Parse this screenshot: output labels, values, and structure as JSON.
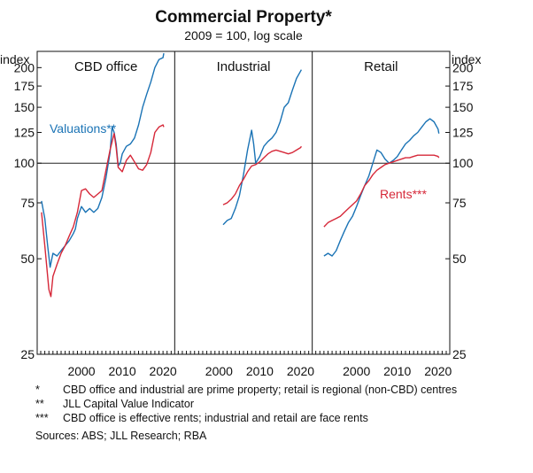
{
  "title": "Commercial Property*",
  "subtitle": "2009 = 100, log scale",
  "colors": {
    "valuations": "#1a73b5",
    "rents": "#d62839",
    "axis": "#111111",
    "grid": "#222222"
  },
  "chart_data": {
    "type": "line",
    "scale": "log",
    "title": "Commercial Property*",
    "subtitle": "2009 = 100, log scale",
    "y_unit_left": "index",
    "y_unit_right": "index",
    "ylim": [
      25,
      225
    ],
    "yticks": [
      25,
      50,
      75,
      100,
      125,
      150,
      175,
      200
    ],
    "xlim": [
      1990,
      2022
    ],
    "xticks": [
      2000,
      2010,
      2020
    ],
    "x_tick_labels": [
      "2000",
      "2010",
      "2020"
    ],
    "series_labels": {
      "valuations": "Valuations**",
      "rents": "Rents***"
    },
    "panels": [
      {
        "name": "CBD office",
        "series": [
          {
            "name": "Valuations**",
            "x": [
              1990.2,
              1991,
              1991.7,
              1992.3,
              1993,
              1994,
              1995,
              1996,
              1997,
              1998,
              1998.5,
              1999,
              1999.5,
              2000,
              2001,
              2002,
              2003,
              2004,
              2005,
              2006,
              2007,
              2007.5,
              2008,
              2008.5,
              2009,
              2009.5,
              2010,
              2011,
              2012,
              2013,
              2014,
              2015,
              2016,
              2017,
              2018,
              2019,
              2020,
              2020.2
            ],
            "y": [
              76,
              67,
              55,
              47,
              52,
              51,
              53,
              55,
              57,
              60,
              62,
              67,
              70,
              73,
              70,
              72,
              70,
              72,
              78,
              90,
              108,
              130,
              125,
              115,
              98,
              100,
              107,
              113,
              115,
              120,
              132,
              150,
              165,
              180,
              200,
              212,
              215,
              222
            ]
          },
          {
            "name": "Rents***",
            "x": [
              1990.2,
              1991,
              1992,
              1992.5,
              1993,
              1994,
              1995,
              1996,
              1997,
              1998,
              1999,
              2000,
              2001,
              2002,
              2003,
              2004,
              2005,
              2006,
              2007,
              2008,
              2008.5,
              2009,
              2010,
              2011,
              2012,
              2013,
              2014,
              2015,
              2016,
              2017,
              2018,
              2019,
              2020,
              2020.2
            ],
            "y": [
              70,
              55,
              40,
              38,
              44,
              48,
              52,
              55,
              59,
              63,
              70,
              82,
              83,
              80,
              78,
              80,
              82,
              95,
              110,
              124,
              112,
              97,
              94,
              102,
              106,
              101,
              96,
              95,
              99,
              108,
              125,
              130,
              132,
              130
            ]
          }
        ]
      },
      {
        "name": "Industrial",
        "series": [
          {
            "name": "Valuations**",
            "x": [
              2001,
              2002,
              2003,
              2004,
              2005,
              2006,
              2007,
              2008,
              2008.5,
              2009,
              2010,
              2011,
              2012,
              2013,
              2014,
              2015,
              2016,
              2017,
              2018,
              2019,
              2020,
              2020.2
            ],
            "y": [
              64,
              66,
              67,
              72,
              79,
              92,
              110,
              127,
              115,
              100,
              105,
              113,
              117,
              120,
              125,
              135,
              150,
              155,
              170,
              185,
              195,
              197
            ]
          },
          {
            "name": "Rents***",
            "x": [
              2001,
              2002,
              2003,
              2004,
              2005,
              2006,
              2007,
              2008,
              2009,
              2010,
              2011,
              2012,
              2013,
              2014,
              2015,
              2016,
              2017,
              2018,
              2019,
              2020,
              2020.2
            ],
            "y": [
              74,
              75,
              77,
              80,
              85,
              89,
              94,
              98,
              99,
              101,
              104,
              107,
              109,
              110,
              109,
              108,
              107,
              108,
              110,
              112,
              113
            ]
          }
        ]
      },
      {
        "name": "Retail",
        "series": [
          {
            "name": "Valuations**",
            "x": [
              1992,
              1993,
              1994,
              1995,
              1996,
              1997,
              1998,
              1999,
              2000,
              2001,
              2002,
              2003,
              2004,
              2005,
              2006,
              2007,
              2008,
              2009,
              2010,
              2011,
              2012,
              2013,
              2014,
              2015,
              2016,
              2017,
              2018,
              2019,
              2020,
              2020.2
            ],
            "y": [
              51,
              52,
              51,
              53,
              57,
              61,
              65,
              68,
              73,
              79,
              85,
              91,
              100,
              110,
              108,
              103,
              100,
              102,
              105,
              110,
              115,
              118,
              122,
              125,
              130,
              135,
              138,
              135,
              128,
              124
            ]
          },
          {
            "name": "Rents***",
            "x": [
              1992,
              1993,
              1994,
              1995,
              1996,
              1997,
              1998,
              1999,
              2000,
              2001,
              2002,
              2003,
              2004,
              2005,
              2006,
              2007,
              2008,
              2009,
              2010,
              2011,
              2012,
              2013,
              2014,
              2015,
              2016,
              2017,
              2018,
              2019,
              2020,
              2020.2
            ],
            "y": [
              63,
              65,
              66,
              67,
              68,
              70,
              72,
              74,
              76,
              80,
              85,
              88,
              92,
              95,
              97,
              99,
              100,
              101,
              102,
              103,
              104,
              104,
              105,
              106,
              106,
              106,
              106,
              106,
              105,
              104
            ]
          }
        ]
      }
    ]
  },
  "notes": [
    {
      "mark": "*",
      "text": "CBD office and industrial are prime property; retail is regional (non-CBD) centres"
    },
    {
      "mark": "**",
      "text": "JLL Capital Value Indicator"
    },
    {
      "mark": "***",
      "text": "CBD office is effective rents; industrial and retail are face rents"
    }
  ],
  "sources": "Sources: ABS; JLL Research; RBA"
}
